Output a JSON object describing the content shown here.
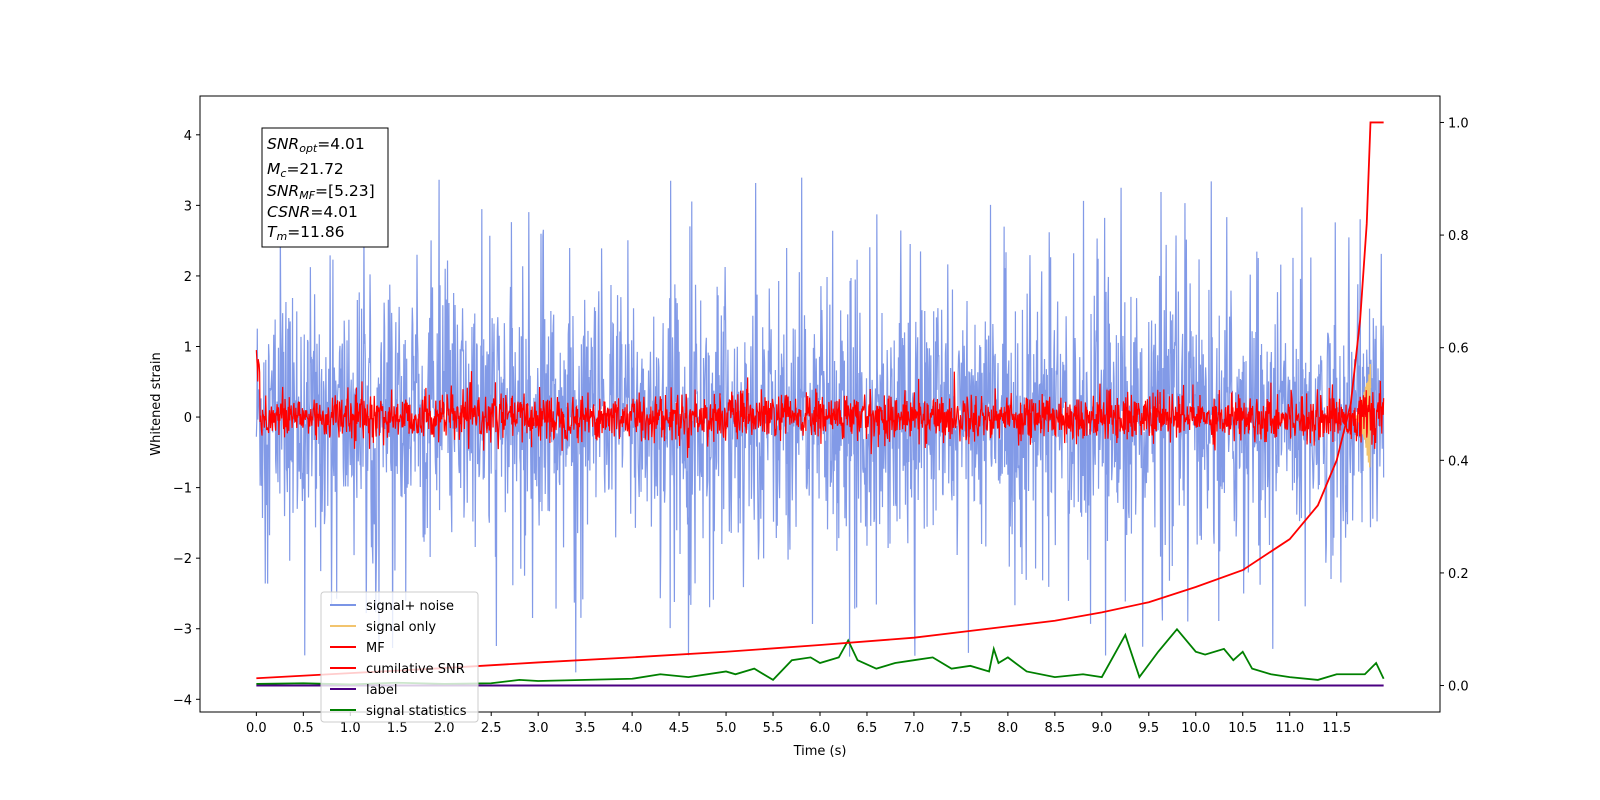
{
  "chart_data": {
    "type": "line",
    "xlabel": "Time (s)",
    "ylabel": "Whitened strain",
    "xlim": [
      -0.6,
      12.6
    ],
    "ylim": [
      -4.18,
      4.55
    ],
    "y2lim": [
      -0.047,
      1.047
    ],
    "x_ticks": [
      0.0,
      0.5,
      1.0,
      1.5,
      2.0,
      2.5,
      3.0,
      3.5,
      4.0,
      4.5,
      5.0,
      5.5,
      6.0,
      6.5,
      7.0,
      7.5,
      8.0,
      8.5,
      9.0,
      9.5,
      10.0,
      10.5,
      11.0,
      11.5
    ],
    "x_tick_labels": [
      "0.0",
      "0.5",
      "1.0",
      "1.5",
      "2.0",
      "2.5",
      "3.0",
      "3.5",
      "4.0",
      "4.5",
      "5.0",
      "5.5",
      "6.0",
      "6.5",
      "7.0",
      "7.5",
      "8.0",
      "8.5",
      "9.0",
      "9.5",
      "10.0",
      "10.5",
      "11.0",
      "11.5"
    ],
    "y_ticks": [
      -4,
      -3,
      -2,
      -1,
      0,
      1,
      2,
      3,
      4
    ],
    "y_tick_labels": [
      "−4",
      "−3",
      "−2",
      "−1",
      "0",
      "1",
      "2",
      "3",
      "4"
    ],
    "y2_ticks": [
      0.0,
      0.2,
      0.4,
      0.6,
      0.8,
      1.0
    ],
    "y2_tick_labels": [
      "0.0",
      "0.2",
      "0.4",
      "0.6",
      "0.8",
      "1.0"
    ],
    "stats_box": {
      "snr_opt": {
        "sym": "SNR",
        "sub": "opt",
        "value": "=4.01"
      },
      "mc": {
        "sym": "M",
        "sub": "c",
        "value": "=21.72"
      },
      "snr_mf": {
        "sym": "SNR",
        "sub": "MF",
        "value": "=[5.23]"
      },
      "csnr": {
        "sym": "CSNR",
        "sub": "",
        "value": "=4.01"
      },
      "tm": {
        "sym": "T",
        "sub": "m",
        "value": "=11.86"
      }
    },
    "series": [
      {
        "name": "signal+ noise",
        "color": "#7b95e6",
        "axis": "left",
        "t_start": 0.0,
        "t_end": 12.0,
        "sigma": 0.9,
        "peak": 4.15
      },
      {
        "name": "signal only",
        "color": "#f2c46e",
        "axis": "left",
        "t_start": 11.7,
        "t_end": 11.86,
        "peak": 0.8
      },
      {
        "name": "MF",
        "color": "#ff0000",
        "axis": "left",
        "t_start": 0.0,
        "t_end": 12.0,
        "sigma": 0.17,
        "peak": 1.0
      },
      {
        "name": "cumilative SNR",
        "color": "#ff0000",
        "axis": "right",
        "x": [
          0.0,
          1.0,
          2.0,
          3.0,
          4.0,
          5.0,
          6.0,
          7.0,
          8.0,
          8.5,
          9.0,
          9.5,
          10.0,
          10.5,
          11.0,
          11.3,
          11.5,
          11.65,
          11.75,
          11.82,
          11.86,
          12.0
        ],
        "y": [
          0.013,
          0.022,
          0.031,
          0.041,
          0.05,
          0.06,
          0.072,
          0.085,
          0.105,
          0.115,
          0.13,
          0.148,
          0.175,
          0.205,
          0.26,
          0.32,
          0.4,
          0.5,
          0.65,
          0.82,
          1.0,
          1.0
        ]
      },
      {
        "name": "label",
        "color": "#4b0082",
        "axis": "right",
        "x": [
          0.0,
          12.0
        ],
        "y": [
          0.0,
          0.0
        ]
      },
      {
        "name": "signal statistics",
        "color": "#008000",
        "axis": "right",
        "x": [
          0.0,
          0.5,
          1.0,
          1.5,
          2.0,
          2.5,
          2.8,
          3.0,
          3.5,
          4.0,
          4.3,
          4.6,
          5.0,
          5.1,
          5.3,
          5.5,
          5.7,
          5.9,
          6.0,
          6.2,
          6.3,
          6.4,
          6.6,
          6.8,
          7.0,
          7.2,
          7.4,
          7.6,
          7.8,
          7.85,
          7.9,
          8.0,
          8.2,
          8.5,
          8.8,
          9.0,
          9.25,
          9.4,
          9.6,
          9.8,
          10.0,
          10.1,
          10.3,
          10.4,
          10.5,
          10.6,
          10.8,
          11.0,
          11.3,
          11.5,
          11.8,
          11.92,
          12.0
        ],
        "y": [
          0.003,
          0.004,
          0.002,
          0.005,
          0.003,
          0.004,
          0.01,
          0.008,
          0.01,
          0.012,
          0.02,
          0.015,
          0.025,
          0.02,
          0.03,
          0.01,
          0.045,
          0.05,
          0.04,
          0.05,
          0.08,
          0.045,
          0.03,
          0.04,
          0.045,
          0.05,
          0.03,
          0.035,
          0.025,
          0.065,
          0.04,
          0.05,
          0.025,
          0.015,
          0.02,
          0.015,
          0.09,
          0.015,
          0.06,
          0.1,
          0.06,
          0.055,
          0.065,
          0.045,
          0.06,
          0.03,
          0.02,
          0.015,
          0.01,
          0.02,
          0.02,
          0.04,
          0.012
        ]
      }
    ]
  }
}
